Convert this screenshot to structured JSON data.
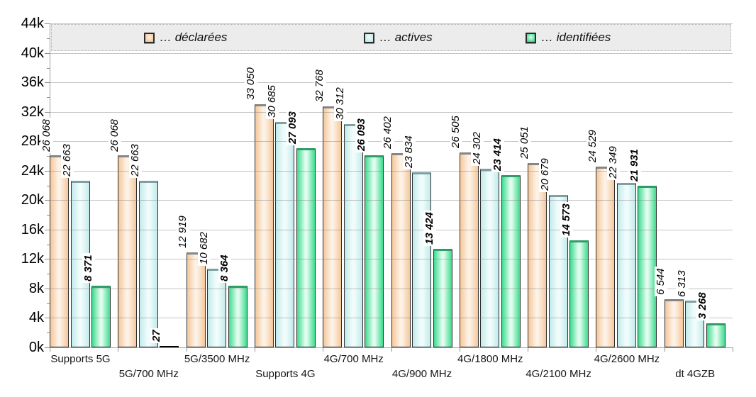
{
  "chart_data": {
    "type": "bar",
    "title": "",
    "xlabel": "",
    "ylabel": "",
    "grid": true,
    "legend_position": "top",
    "categories": [
      "Supports 5G",
      "5G/700 MHz",
      "5G/3500 MHz",
      "Supports 4G",
      "4G/700 MHz",
      "4G/900 MHz",
      "4G/1800 MHz",
      "4G/2100 MHz",
      "4G/2600 MHz",
      "dt 4GZB"
    ],
    "series": [
      {
        "name": "… déclarées",
        "values": [
          26068,
          26068,
          12919,
          33050,
          32768,
          26402,
          26505,
          25051,
          24529,
          6544
        ],
        "labels": [
          "26 068",
          "26 068",
          "12 919",
          "33 050",
          "32 768",
          "26 402",
          "26 505",
          "25 051",
          "24 529",
          "6 544"
        ],
        "color_edge": "#f5c79b",
        "color_center": "#fdf2e6",
        "cap_color": "#858585",
        "label_bold": false
      },
      {
        "name": "… actives",
        "values": [
          22663,
          22663,
          10682,
          30685,
          30312,
          23834,
          24302,
          20679,
          22349,
          6313
        ],
        "labels": [
          "22 663",
          "22 663",
          "10 682",
          "30 685",
          "30 312",
          "23 834",
          "24 302",
          "20 679",
          "22 349",
          "6 313"
        ],
        "color_edge": "#c2eaea",
        "color_center": "#f1fcfc",
        "cap_color": "#7f9fa1",
        "label_bold": false
      },
      {
        "name": "… identifiées",
        "values": [
          8371,
          27,
          8364,
          27093,
          26093,
          13424,
          23414,
          14573,
          21931,
          3268
        ],
        "labels": [
          "8 371",
          "27",
          "8 364",
          "27 093",
          "26 093",
          "13 424",
          "23 414",
          "14 573",
          "21 931",
          "3 268"
        ],
        "color_edge": "#3ddc8e",
        "color_center": "#e0fcee",
        "cap_color": "#2e9e68",
        "label_bold": true
      }
    ],
    "y_axis": {
      "tick_labels": [
        "0k",
        "4k",
        "8k",
        "12k",
        "16k",
        "20k",
        "24k",
        "28k",
        "32k",
        "36k",
        "40k",
        "44k"
      ],
      "max": 44000,
      "major_step": 4000,
      "minor_step": 2000,
      "ylim": [
        0,
        44000
      ]
    }
  },
  "colors": {
    "gridline": "#cccccc",
    "axis": "#9b9b9b",
    "legend_background": "#ececec"
  }
}
